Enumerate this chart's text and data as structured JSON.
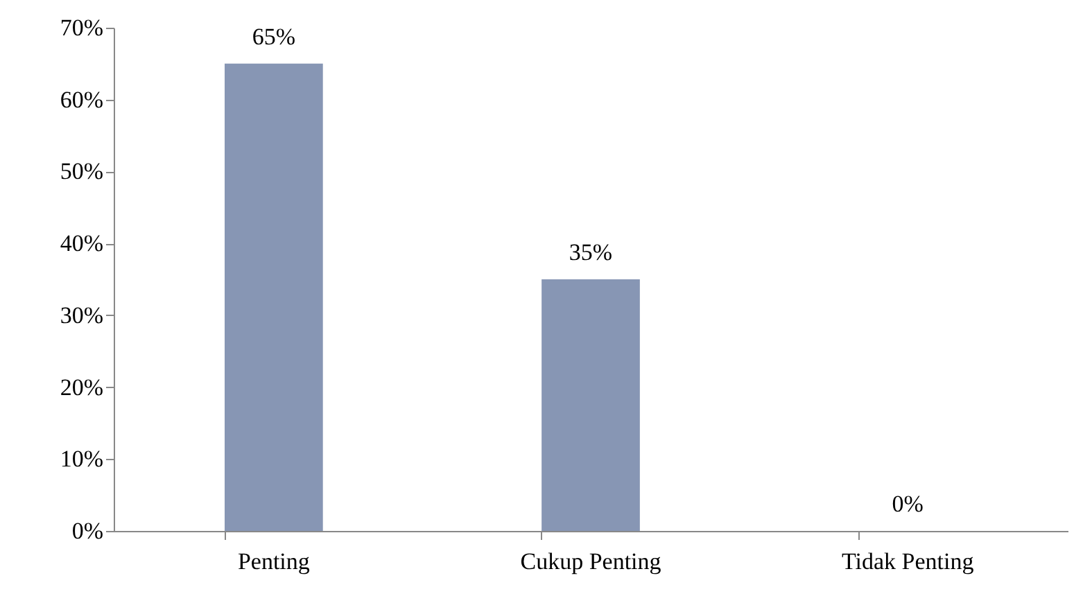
{
  "chart_data": {
    "type": "bar",
    "categories": [
      "Penting",
      "Cukup Penting",
      "Tidak Penting"
    ],
    "values": [
      65,
      35,
      0
    ],
    "value_labels": [
      "65%",
      "35%",
      "0%"
    ],
    "color": "#8796b4",
    "ylim": [
      0,
      70
    ],
    "yticks": [
      {
        "value": 0,
        "label": "0%"
      },
      {
        "value": 10,
        "label": "10%"
      },
      {
        "value": 20,
        "label": "20%"
      },
      {
        "value": 30,
        "label": "30%"
      },
      {
        "value": 40,
        "label": "40%"
      },
      {
        "value": 50,
        "label": "50%"
      },
      {
        "value": 60,
        "label": "60%"
      },
      {
        "value": 70,
        "label": "70%"
      }
    ],
    "grid": false
  }
}
